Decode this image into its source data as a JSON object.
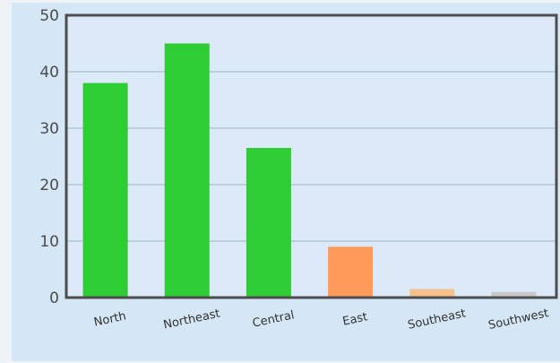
{
  "chart_data": {
    "type": "bar",
    "categories": [
      "North",
      "Northeast",
      "Central",
      "East",
      "Southeast",
      "Southwest"
    ],
    "values": [
      38,
      45,
      26.5,
      9,
      1.5,
      1
    ],
    "bar_colors": [
      "#2ecc35",
      "#2ecc35",
      "#2ecc35",
      "#ff9a5a",
      "#f5c08a",
      "#c9c9c9"
    ],
    "ylim": [
      0,
      50
    ],
    "yticks": [
      0,
      10,
      20,
      30,
      40,
      50
    ],
    "grid": true,
    "title": "",
    "xlabel": "",
    "ylabel": ""
  }
}
